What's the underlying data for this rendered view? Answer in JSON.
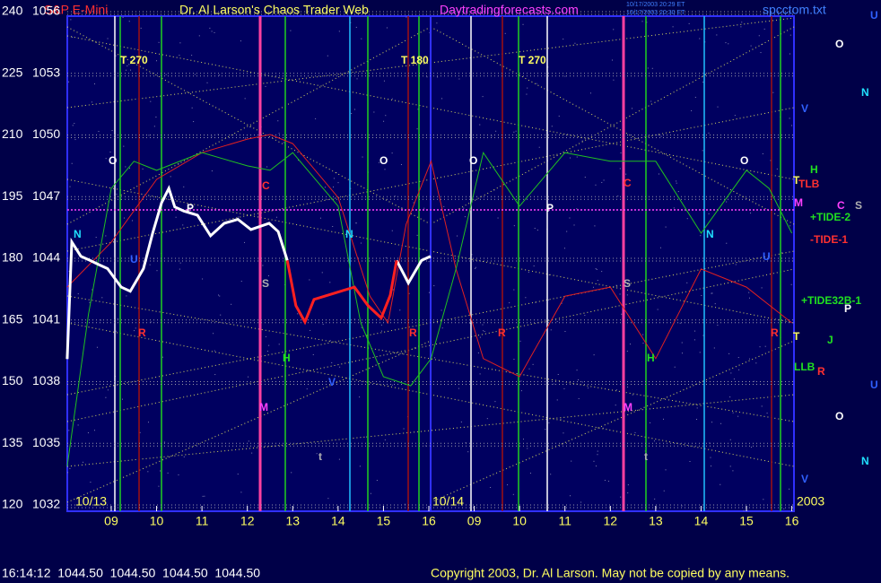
{
  "chart_data": {
    "type": "line",
    "title": "S&P E-Mini",
    "subtitle": "Dr. Al Larson's Chaos Trader Web",
    "site": "Daytradingforecasts.com",
    "file": "spcctom.txt",
    "timestamps": [
      "10/17/2003 20:29 ET",
      "10/17/2003 20:30 ET"
    ],
    "quote": "16:14:12  1044.50  1044.50  1044.50  1044.50",
    "copyright": "Copyright 2003, Dr. Al Larson. May not be copied by any means.",
    "xlim": [
      8,
      24
    ],
    "xticks": [
      {
        "value": 9,
        "label": "09"
      },
      10,
      11,
      12,
      13,
      14,
      15,
      16,
      {
        "value": 17,
        "label": "09"
      },
      {
        "value": 18,
        "label": "10"
      },
      {
        "value": 19,
        "label": "11"
      },
      {
        "value": 20,
        "label": "12"
      },
      {
        "value": 21,
        "label": "13"
      },
      {
        "value": 22,
        "label": "14"
      },
      {
        "value": 23,
        "label": "15"
      },
      {
        "value": 24,
        "label": "16"
      }
    ],
    "ylim": [
      120,
      240
    ],
    "yticks": [
      120,
      135,
      150,
      165,
      180,
      195,
      210,
      225,
      240
    ],
    "y2lim": [
      1032,
      1056
    ],
    "y2ticks": [
      1032,
      1035,
      1038,
      1041,
      1044,
      1047,
      1050,
      1053,
      1056
    ],
    "grid": true,
    "x": [
      8.03,
      8.13,
      8.33,
      8.53,
      8.72,
      8.92,
      9.22,
      9.42,
      9.71,
      9.91,
      10.11,
      10.27,
      10.4,
      10.6,
      10.9,
      11.19,
      11.49,
      11.79,
      12.08,
      12.48,
      12.68,
      12.88,
      13.07,
      13.27,
      13.47,
      13.77,
      14.06,
      14.36,
      14.66,
      14.95,
      15.15,
      15.29,
      15.55,
      15.84,
      16.04
    ],
    "series": [
      {
        "color": "#ffffff",
        "axis": "y2",
        "width": 3,
        "values": [
          1039.1,
          1044.8,
          1044.1,
          1043.9,
          1043.7,
          1043.5,
          1042.6,
          1042.4,
          1043.5,
          1045.2,
          1046.7,
          1047.4,
          1046.5,
          1046.3,
          1046.1,
          1045.1,
          1045.7,
          1045.9,
          1045.4,
          1045.7,
          1045.3,
          1043.9,
          null,
          null,
          null,
          null,
          null,
          null,
          null,
          null,
          null,
          1043.9,
          1042.8,
          1043.9,
          1044.1
        ]
      },
      {
        "color": "#ff2020",
        "axis": "y2",
        "width": 3,
        "values": [
          null,
          null,
          null,
          null,
          null,
          null,
          null,
          null,
          null,
          null,
          null,
          null,
          null,
          null,
          null,
          null,
          null,
          null,
          null,
          null,
          null,
          1043.9,
          1041.7,
          1040.9,
          1042.0,
          1042.2,
          1042.4,
          1042.6,
          1041.7,
          1041.1,
          1042.2,
          1043.9,
          null,
          null,
          null
        ]
      },
      {
        "color": "#e02020",
        "width": 1,
        "x": [
          8.03,
          9,
          10,
          11,
          12,
          12.5,
          13,
          14,
          14.7,
          15.1,
          15.5,
          16.05,
          16.6,
          17.2,
          18,
          19,
          20,
          21,
          22,
          23,
          24
        ],
        "values": [
          173.0,
          183.9,
          199.2,
          205.7,
          209.0,
          210.1,
          207.9,
          194.8,
          170.8,
          164.3,
          188.3,
          203.6,
          177.4,
          155.6,
          151.2,
          170.8,
          173.0,
          155.6,
          177.4,
          173.0,
          164.3
        ]
      },
      {
        "color": "#20c020",
        "width": 1,
        "x": [
          8.03,
          8.5,
          9,
          9.5,
          10,
          11,
          12,
          12.5,
          13,
          14,
          14.5,
          15,
          15.6,
          16.05,
          16.6,
          17.2,
          18,
          19,
          20,
          21,
          22,
          23,
          23.5,
          24
        ],
        "values": [
          129.4,
          166.5,
          197.0,
          203.6,
          201.4,
          205.7,
          202.5,
          201.4,
          205.7,
          192.7,
          164.3,
          151.2,
          149.0,
          155.6,
          177.4,
          205.7,
          192.7,
          205.7,
          203.6,
          203.6,
          186.1,
          201.4,
          197.0,
          186.1
        ]
      }
    ],
    "annotations": [
      "T 270",
      "T 180",
      "T 270",
      "O",
      "O",
      "O",
      "O",
      "O",
      "O",
      "N",
      "N",
      "N",
      "N",
      "N",
      "V",
      "V",
      "V",
      "C",
      "C",
      "C",
      "S",
      "S",
      "S",
      "P",
      "P",
      "P",
      "M",
      "M",
      "M",
      "H",
      "H",
      "H",
      "R",
      "R",
      "R",
      "R",
      "R",
      "U",
      "U",
      "U",
      "U",
      "t",
      "t",
      "J",
      "T",
      "TLB",
      "T",
      "LLB",
      "+TIDE-2",
      "-TIDE-1",
      "+TIDE32B-1",
      "10/13",
      "10/14",
      "2003"
    ]
  }
}
